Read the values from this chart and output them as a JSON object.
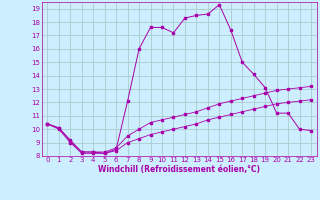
{
  "xlabel": "Windchill (Refroidissement éolien,°C)",
  "background_color": "#cceeff",
  "grid_color": "#aacccc",
  "line_color": "#aa00aa",
  "xlim": [
    -0.5,
    23.5
  ],
  "ylim": [
    8,
    19.5
  ],
  "xticks": [
    0,
    1,
    2,
    3,
    4,
    5,
    6,
    7,
    8,
    9,
    10,
    11,
    12,
    13,
    14,
    15,
    16,
    17,
    18,
    19,
    20,
    21,
    22,
    23
  ],
  "yticks": [
    8,
    9,
    10,
    11,
    12,
    13,
    14,
    15,
    16,
    17,
    18,
    19
  ],
  "series1_x": [
    0,
    1,
    2,
    3,
    4,
    5,
    6,
    7,
    8,
    9,
    10,
    11,
    12,
    13,
    14,
    15,
    16,
    17,
    18,
    19,
    20,
    21,
    22,
    23
  ],
  "series1_y": [
    10.4,
    10.1,
    9.1,
    8.3,
    8.3,
    8.2,
    8.5,
    12.1,
    16.0,
    17.6,
    17.6,
    17.2,
    18.3,
    18.5,
    18.6,
    19.3,
    17.4,
    15.0,
    14.1,
    13.1,
    11.2,
    11.2,
    10.0,
    9.9
  ],
  "series2_x": [
    0,
    1,
    2,
    3,
    4,
    5,
    6,
    7,
    8,
    9,
    10,
    11,
    12,
    13,
    14,
    15,
    16,
    17,
    18,
    19,
    20,
    21,
    22,
    23
  ],
  "series2_y": [
    10.4,
    10.1,
    9.2,
    8.3,
    8.3,
    8.3,
    8.6,
    9.5,
    10.0,
    10.5,
    10.7,
    10.9,
    11.1,
    11.3,
    11.6,
    11.9,
    12.1,
    12.3,
    12.5,
    12.7,
    12.9,
    13.0,
    13.1,
    13.2
  ],
  "series3_x": [
    0,
    1,
    2,
    3,
    4,
    5,
    6,
    7,
    8,
    9,
    10,
    11,
    12,
    13,
    14,
    15,
    16,
    17,
    18,
    19,
    20,
    21,
    22,
    23
  ],
  "series3_y": [
    10.4,
    10.0,
    9.0,
    8.2,
    8.2,
    8.2,
    8.4,
    9.0,
    9.3,
    9.6,
    9.8,
    10.0,
    10.2,
    10.4,
    10.7,
    10.9,
    11.1,
    11.3,
    11.5,
    11.7,
    11.9,
    12.0,
    12.1,
    12.2
  ]
}
